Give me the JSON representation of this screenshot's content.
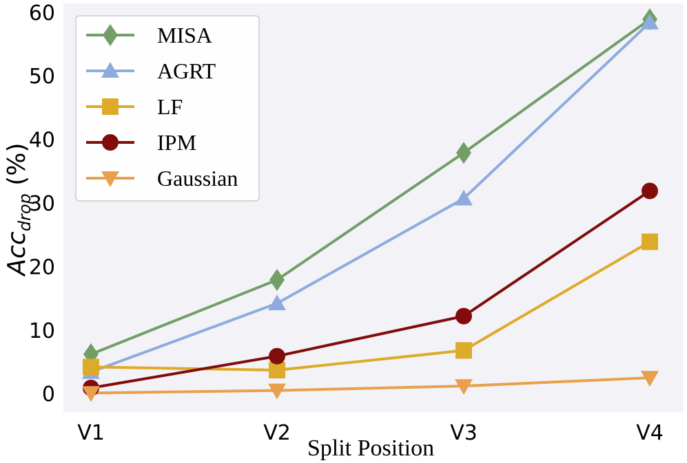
{
  "chart_data": {
    "type": "line",
    "title": "",
    "xlabel": "Split Position",
    "ylabel": {
      "main": "Acc",
      "subscript": "drop",
      "suffix": " (%)"
    },
    "categories": [
      "V1",
      "V2",
      "V3",
      "V4"
    ],
    "ylim": [
      -2.8,
      61.5
    ],
    "yticks": [
      0,
      10,
      20,
      30,
      40,
      50,
      60
    ],
    "grid": false,
    "legend_position": "top-left",
    "series": [
      {
        "name": "MISA",
        "marker": "diamond",
        "color": "#739e67",
        "values": [
          6.3,
          18.0,
          38.0,
          59.0
        ]
      },
      {
        "name": "AGRT",
        "marker": "triangle-up",
        "color": "#8eabe0",
        "values": [
          3.5,
          14.3,
          30.8,
          58.5
        ]
      },
      {
        "name": "LF",
        "marker": "square",
        "color": "#ddaa2a",
        "values": [
          4.3,
          3.8,
          6.9,
          24.0
        ]
      },
      {
        "name": "IPM",
        "marker": "circle",
        "color": "#800c0c",
        "values": [
          1.0,
          6.0,
          12.3,
          32.0
        ]
      },
      {
        "name": "Gaussian",
        "marker": "triangle-down",
        "color": "#e8a04c",
        "values": [
          0.2,
          0.6,
          1.3,
          2.6
        ]
      }
    ]
  }
}
